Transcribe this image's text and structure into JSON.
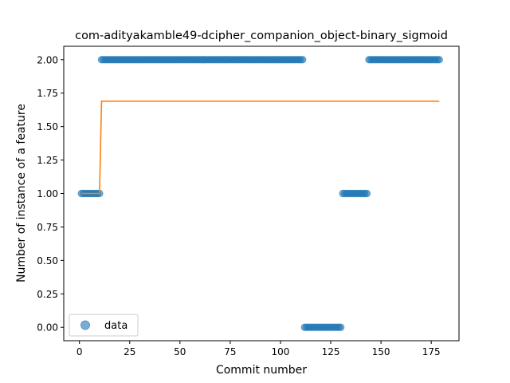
{
  "chart_data": {
    "type": "scatter",
    "title": "com-adityakamble49-dcipher_companion_object-binary_sigmoid",
    "xlabel": "Commit number",
    "ylabel": "Number of instance of a feature",
    "xlim": [
      -7.8,
      188.8
    ],
    "ylim": [
      -0.1,
      2.1
    ],
    "xticks": [
      0,
      25,
      50,
      75,
      100,
      125,
      150,
      175
    ],
    "yticks": [
      0.0,
      0.25,
      0.5,
      0.75,
      1.0,
      1.25,
      1.5,
      1.75,
      2.0
    ],
    "xtick_labels": [
      "0",
      "25",
      "50",
      "75",
      "100",
      "125",
      "150",
      "175"
    ],
    "ytick_labels": [
      "0.00",
      "0.25",
      "0.50",
      "0.75",
      "1.00",
      "1.25",
      "1.50",
      "1.75",
      "2.00"
    ],
    "legend": {
      "position": "lower left",
      "entries": [
        "data"
      ]
    },
    "grid": false,
    "series": [
      {
        "name": "data",
        "kind": "scatter",
        "color": "#1f77b4",
        "segments": [
          {
            "x_start": 1,
            "x_end": 10,
            "y": 1
          },
          {
            "x_start": 11,
            "x_end": 111,
            "y": 2
          },
          {
            "x_start": 112,
            "x_end": 130,
            "y": 0
          },
          {
            "x_start": 131,
            "x_end": 143,
            "y": 1
          },
          {
            "x_start": 144,
            "x_end": 179,
            "y": 2
          }
        ]
      },
      {
        "name": "",
        "kind": "line",
        "color": "#ff7f0e",
        "x": [
          1,
          10,
          11,
          179
        ],
        "y": [
          1.0,
          1.0,
          1.69,
          1.69
        ]
      }
    ]
  }
}
